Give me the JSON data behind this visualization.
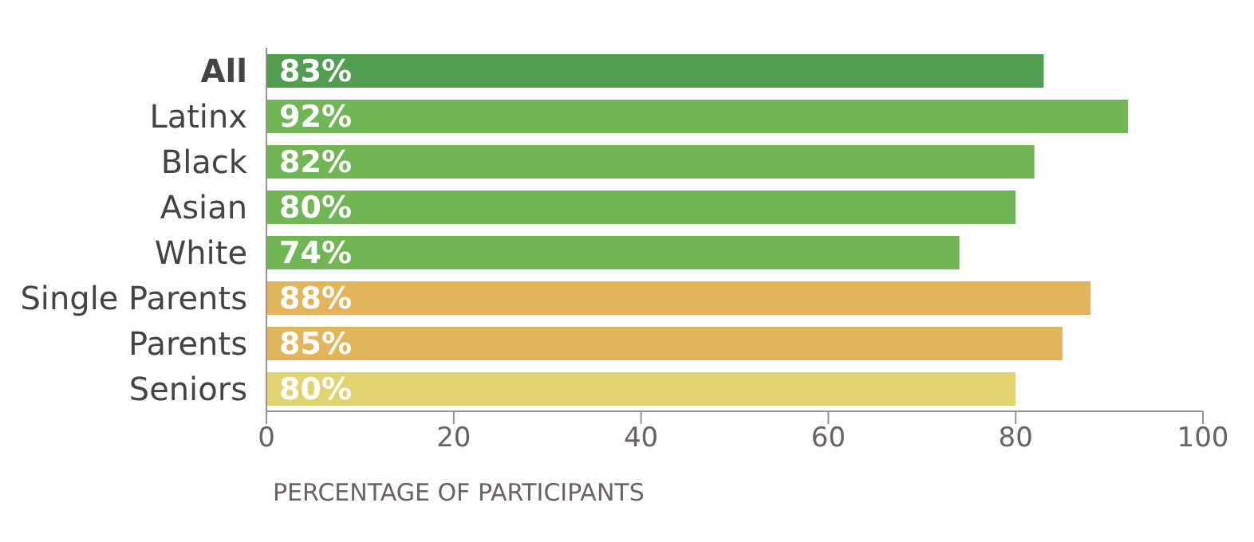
{
  "chart_data": {
    "type": "bar",
    "orientation": "horizontal",
    "xlabel": "PERCENTAGE OF PARTICIPANTS",
    "categories": [
      "All",
      "Latinx",
      "Black",
      "Asian",
      "White",
      "Single Parents",
      "Parents",
      "Seniors"
    ],
    "values": [
      83,
      92,
      82,
      80,
      74,
      88,
      85,
      80
    ],
    "colors": [
      "#519e51",
      "#70b655",
      "#70b655",
      "#70b655",
      "#70b655",
      "#e3b55b",
      "#e3b55b",
      "#e0d370"
    ],
    "value_labels": [
      "83%",
      "92%",
      "82%",
      "80%",
      "74%",
      "88%",
      "85%",
      "80%"
    ],
    "xlim": [
      0,
      100
    ],
    "xticks": [
      0,
      20,
      40,
      60,
      80,
      100
    ],
    "grid": false
  }
}
